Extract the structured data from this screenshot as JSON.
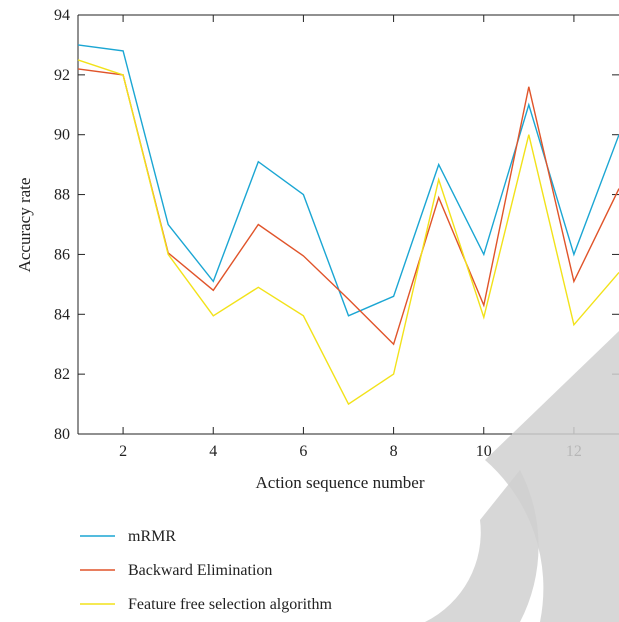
{
  "chart_data": {
    "type": "line",
    "xlabel": "Action sequence number",
    "ylabel": "Accuracy rate",
    "xlim": [
      1,
      13
    ],
    "ylim": [
      80,
      94
    ],
    "x_ticks": [
      2,
      4,
      6,
      8,
      10,
      12
    ],
    "y_ticks": [
      80,
      82,
      84,
      86,
      88,
      90,
      92,
      94
    ],
    "x": [
      1,
      2,
      3,
      4,
      5,
      6,
      7,
      8,
      9,
      10,
      11,
      12,
      13
    ],
    "grid": false,
    "legend_position": "bottom",
    "series": [
      {
        "name": "mRMR",
        "color": "#1ba6d3",
        "values": [
          93.0,
          92.8,
          87.0,
          85.1,
          89.1,
          88.0,
          83.95,
          84.6,
          89.0,
          86.0,
          91.0,
          86.0,
          90.0
        ]
      },
      {
        "name": "Backward Elimination",
        "color": "#e0542a",
        "values": [
          92.2,
          92.0,
          86.05,
          84.8,
          87.0,
          85.95,
          84.5,
          83.0,
          87.9,
          84.3,
          91.6,
          85.1,
          88.2
        ]
      },
      {
        "name": "Feature free selection algorithm",
        "color": "#f2e21a",
        "values": [
          92.5,
          92.0,
          86.0,
          83.95,
          84.9,
          83.95,
          81.0,
          82.0,
          88.5,
          83.9,
          90.0,
          83.65,
          85.4
        ]
      }
    ]
  }
}
